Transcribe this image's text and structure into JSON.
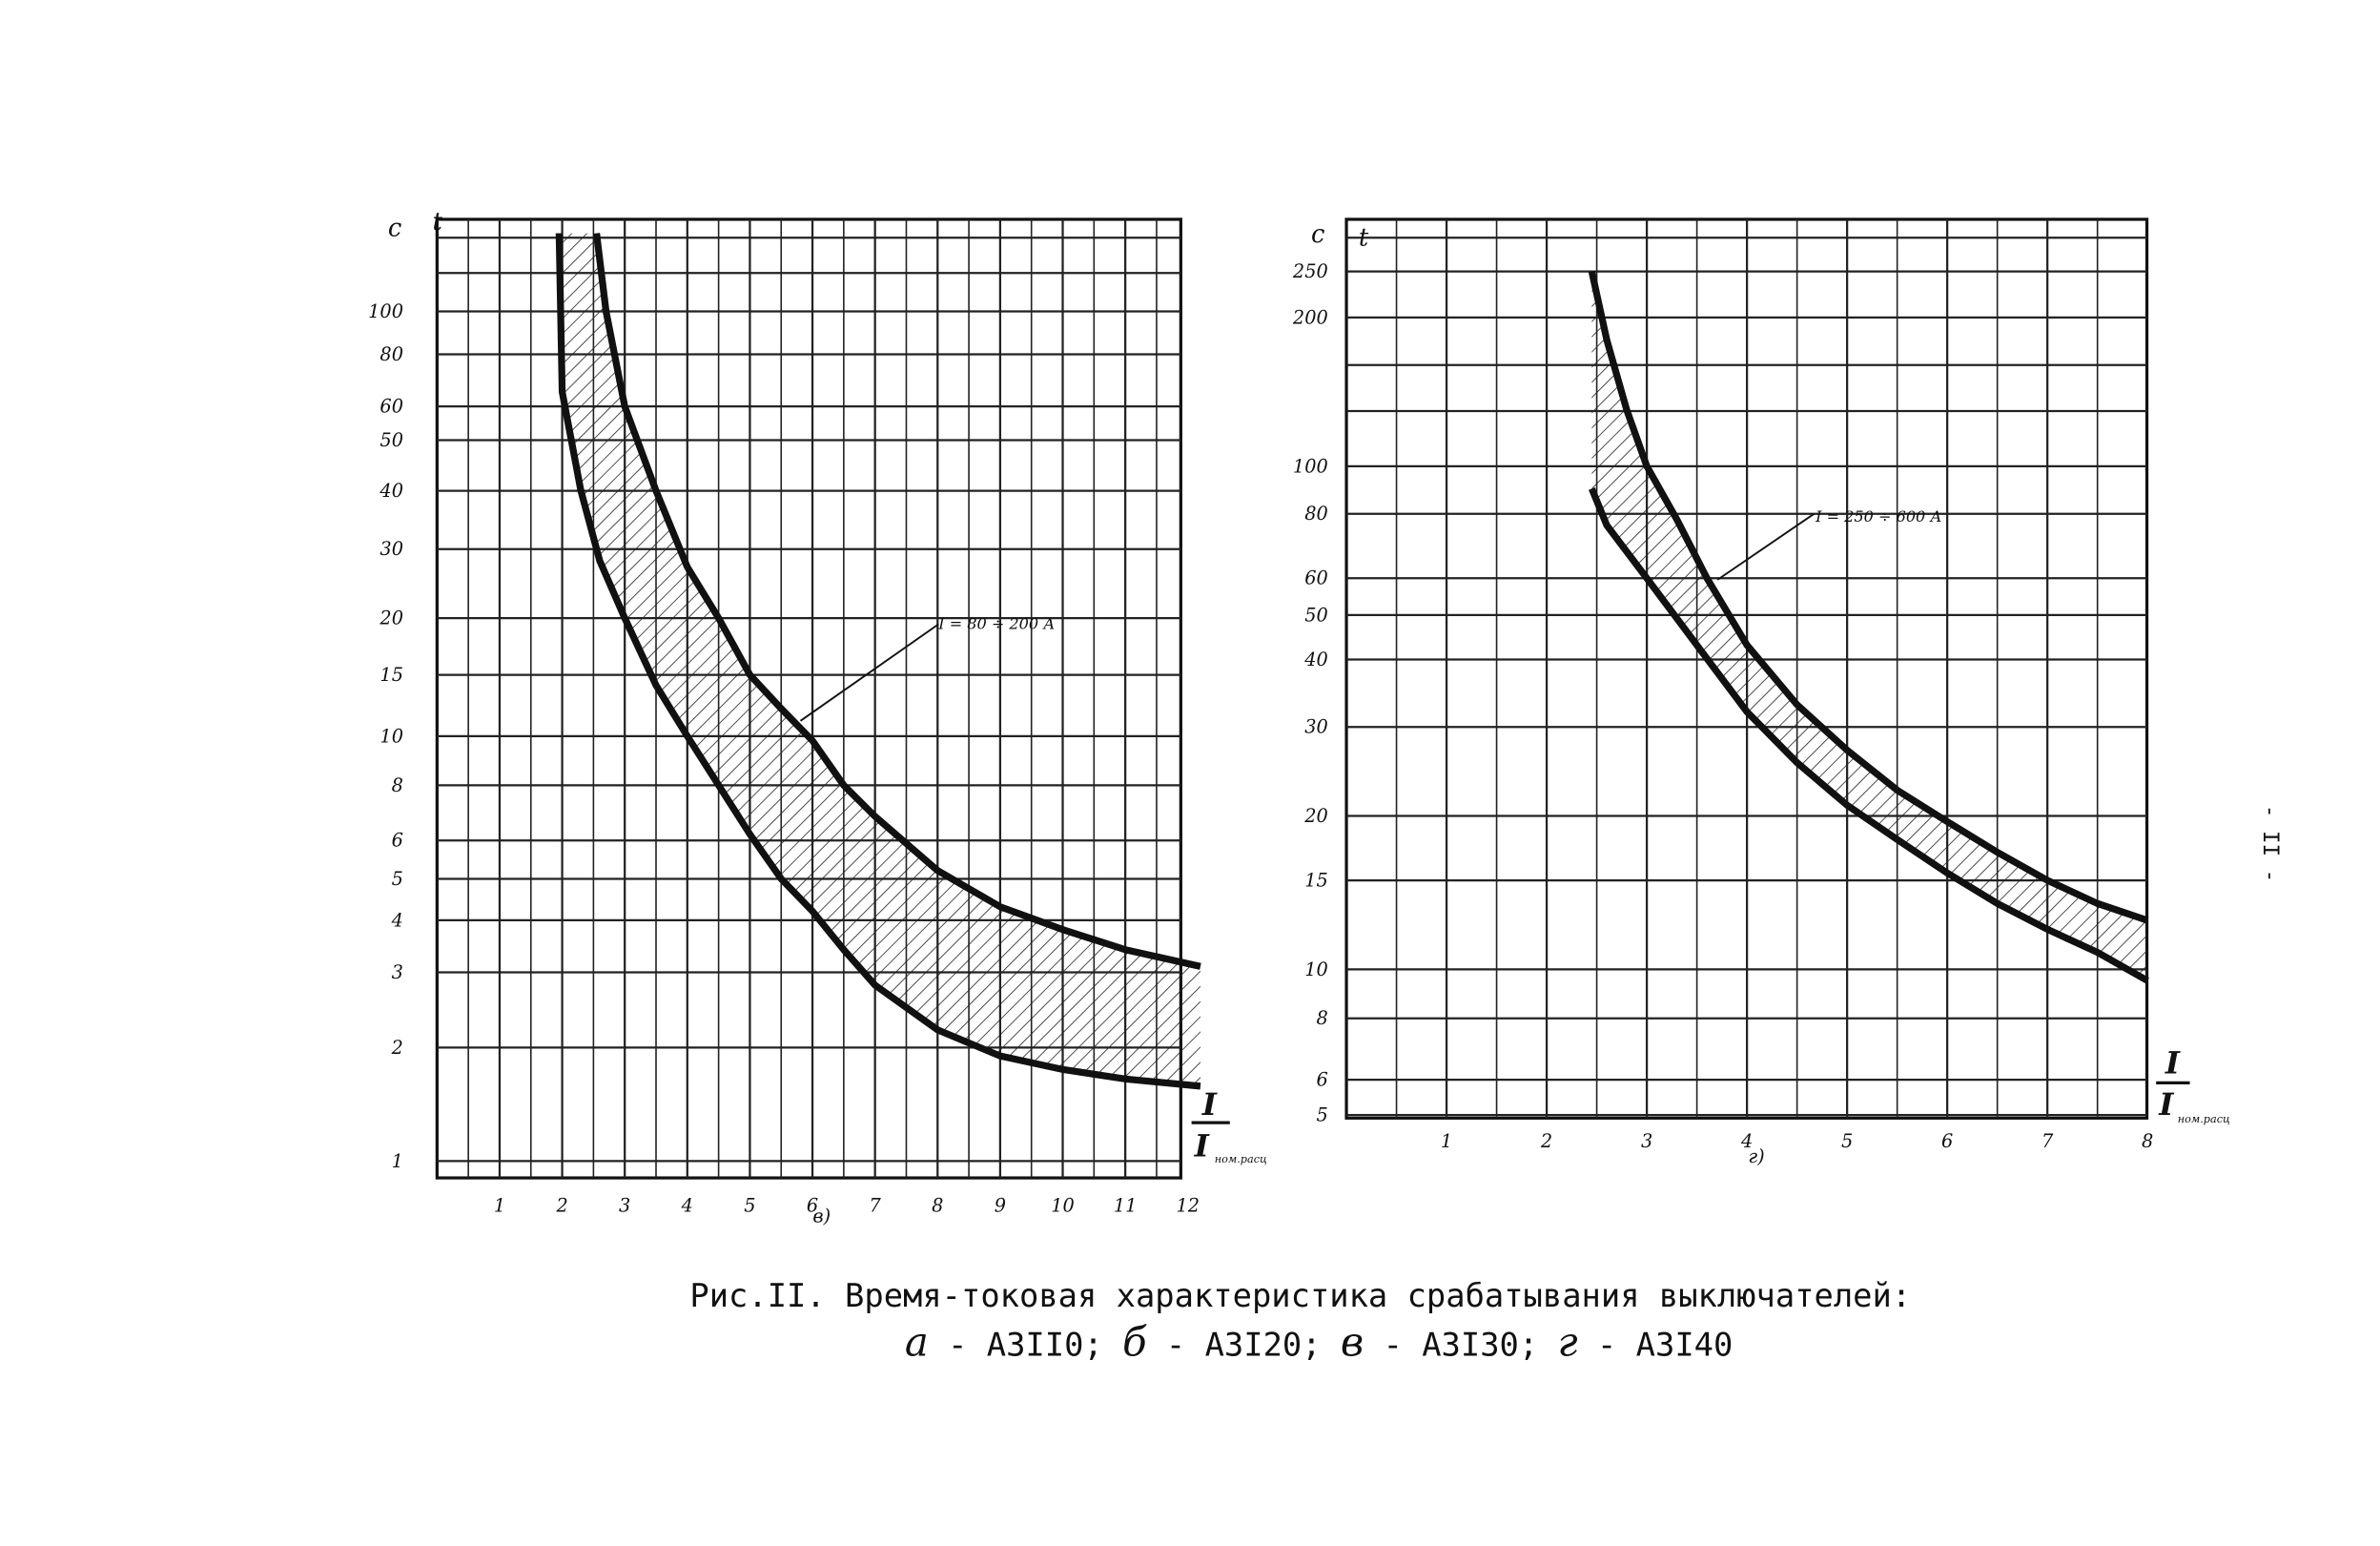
{
  "caption": {
    "line1": "Рис.II. Время-токовая характеристика срабатывания выключателей:",
    "line2": [
      {
        "letter": "а",
        "text": " - А3II0;  "
      },
      {
        "letter": "б",
        "text": " - А3I20;  "
      },
      {
        "letter": "в",
        "text": " - А3I30;  "
      },
      {
        "letter": "г",
        "text": " - А3I40"
      }
    ]
  },
  "page_number": "- II -",
  "chart_data": [
    {
      "type": "area",
      "panel_label": "в)",
      "ylabel": "t",
      "yunit": "с",
      "xlabel_numerator": "I",
      "xlabel_denominator": "I",
      "xlabel_subscript": "ном.расц",
      "x_ticks": [
        "1",
        "2",
        "3",
        "4",
        "5",
        "6",
        "7",
        "8",
        "9",
        "10",
        "11",
        "12"
      ],
      "y_ticks": [
        "1",
        "2",
        "3",
        "4",
        "5",
        "6",
        "8",
        "10",
        "15",
        "20",
        "30",
        "40",
        "50",
        "60",
        "80",
        "100"
      ],
      "xlim": [
        0,
        12
      ],
      "ylim": [
        1,
        150
      ],
      "y_scale": "log",
      "band_annotation": "I = 80 ÷ 200 А",
      "series": [
        {
          "role": "upper",
          "x": [
            2.55,
            2.7,
            3.0,
            3.5,
            4.0,
            4.5,
            5.0,
            5.5,
            6.0,
            6.5,
            7.0,
            8.0,
            9.0,
            10.0,
            11.0,
            12.2
          ],
          "y": [
            150,
            100,
            60,
            40,
            27,
            20,
            15,
            12,
            9.8,
            8,
            6.8,
            5.2,
            4.3,
            3.8,
            3.4,
            3.1
          ]
        },
        {
          "role": "lower",
          "x": [
            1.95,
            2.0,
            2.3,
            2.6,
            3.0,
            3.5,
            4.0,
            4.5,
            5.0,
            5.5,
            6.0,
            6.5,
            7.0,
            8.0,
            9.0,
            10.0,
            11.0,
            12.2
          ],
          "y": [
            150,
            65,
            40,
            28,
            20,
            14,
            10,
            8,
            6.2,
            5,
            4.2,
            3.4,
            2.8,
            2.2,
            1.9,
            1.75,
            1.65,
            1.58
          ]
        }
      ],
      "grid": true
    },
    {
      "type": "area",
      "panel_label": "г)",
      "ylabel": "t",
      "yunit": "с",
      "xlabel_numerator": "I",
      "xlabel_denominator": "I",
      "xlabel_subscript": "ном.расц",
      "x_ticks": [
        "1",
        "2",
        "3",
        "4",
        "5",
        "6",
        "7",
        "8"
      ],
      "y_ticks": [
        "5",
        "6",
        "8",
        "10",
        "15",
        "20",
        "30",
        "40",
        "50",
        "60",
        "80",
        "100",
        "200",
        "250"
      ],
      "xlim": [
        0,
        8
      ],
      "ylim": [
        5,
        300
      ],
      "y_scale": "log",
      "band_annotation": "I = 250 ÷ 600 А",
      "series": [
        {
          "role": "upper",
          "x": [
            2.45,
            2.6,
            2.8,
            3.0,
            3.3,
            3.6,
            4.0,
            4.5,
            5.0,
            5.5,
            6.0,
            6.5,
            7.0,
            7.5,
            8.0
          ],
          "y": [
            250,
            180,
            130,
            100,
            78,
            60,
            43,
            33,
            27,
            22.5,
            19.5,
            17,
            15,
            13.5,
            12.5
          ]
        },
        {
          "role": "lower",
          "x": [
            2.45,
            2.6,
            3.0,
            3.5,
            4.0,
            4.5,
            5.0,
            5.5,
            6.0,
            6.5,
            7.0,
            7.5,
            8.0
          ],
          "y": [
            90,
            76,
            60,
            43,
            32,
            25.5,
            21,
            18,
            15.5,
            13.5,
            12,
            10.8,
            9.5
          ]
        }
      ],
      "grid": true
    }
  ]
}
